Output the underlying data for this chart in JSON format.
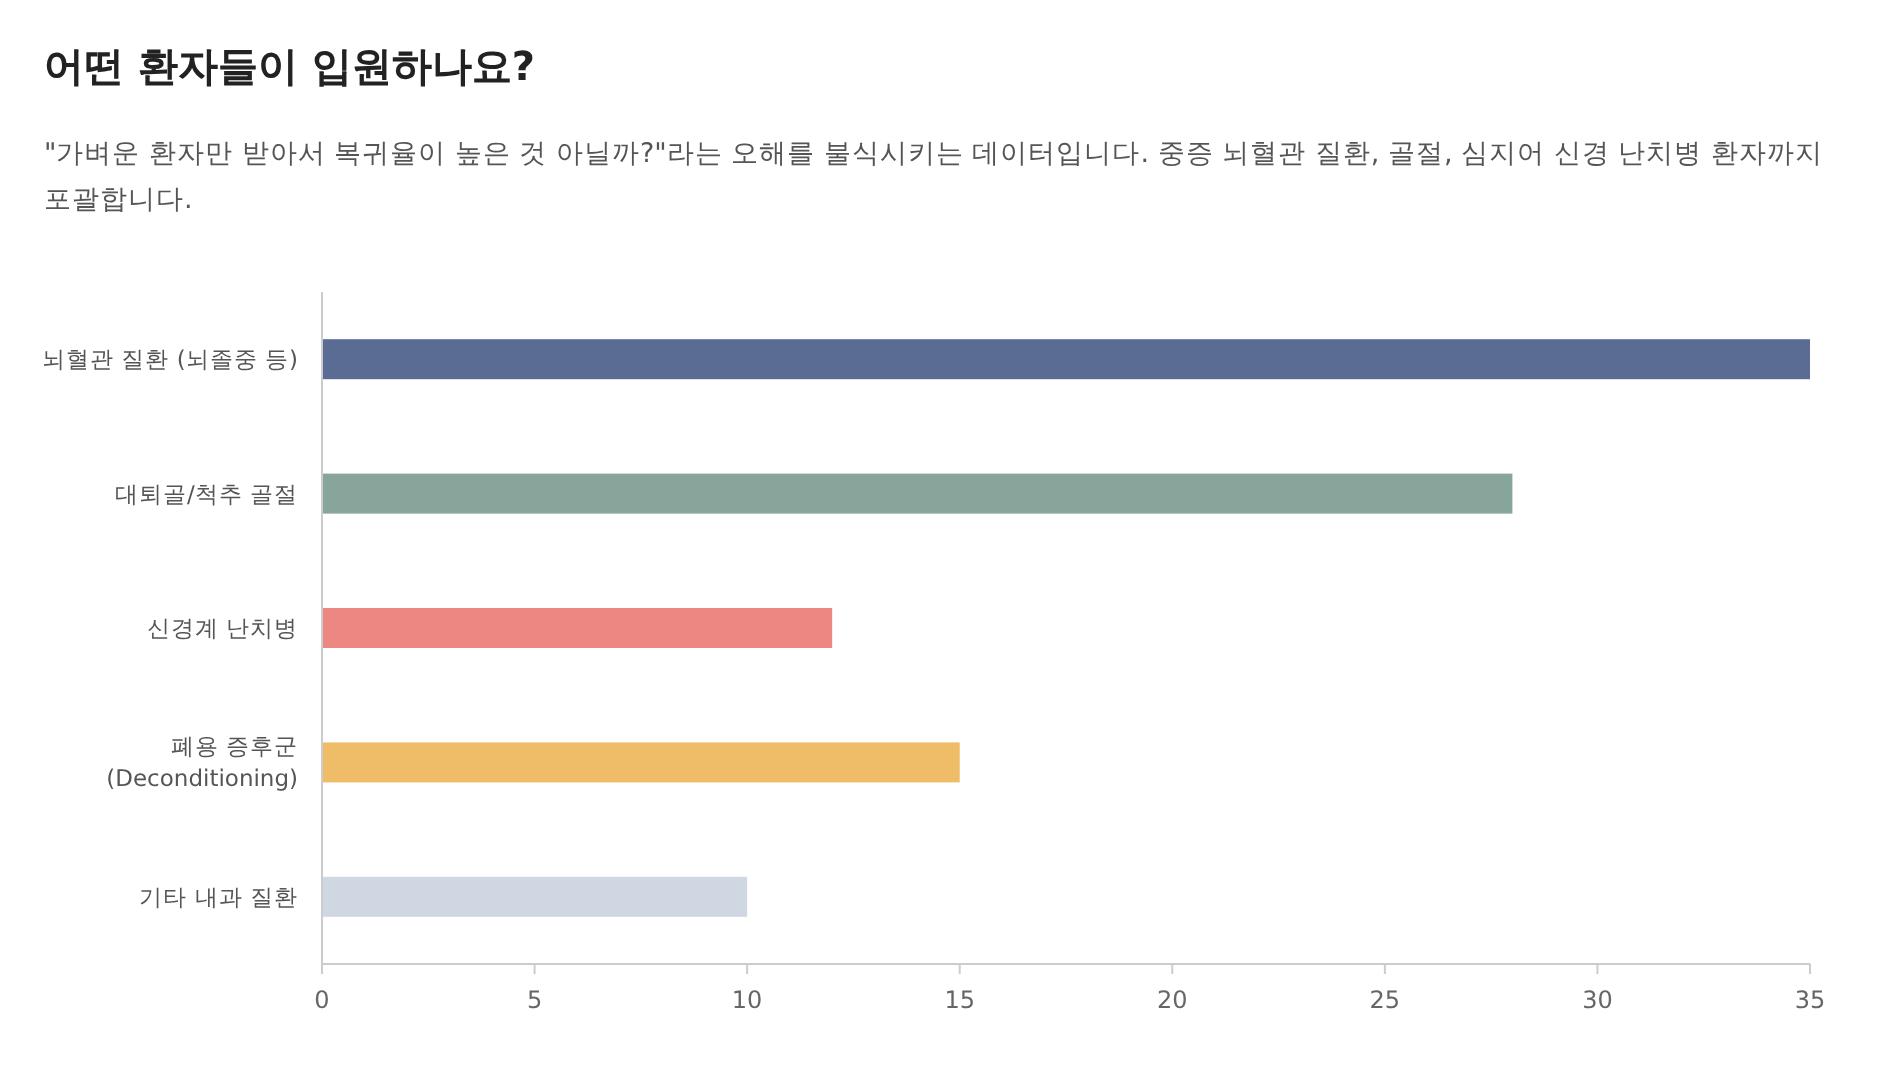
{
  "chart_data": {
    "type": "bar",
    "orientation": "horizontal",
    "title": "어떤 환자들이 입원하나요?",
    "subtitle": "\"가벼운 환자만 받아서 복귀율이 높은 것 아닐까?\"라는 오해를 불식시키는 데이터입니다. 중증 뇌혈관 질환, 골절, 심지어 신경 난치병 환자까지 포괄합니다.",
    "categories": [
      "뇌혈관 질환 (뇌졸중 등)",
      "대퇴골/척추 골절",
      "신경계 난치병",
      "폐용 증후군\n(Deconditioning)",
      "기타 내과 질환"
    ],
    "values": [
      35,
      28,
      12,
      15,
      10
    ],
    "colors": [
      "#5a6b94",
      "#88a59b",
      "#ec8781",
      "#efbd67",
      "#cfd7e3"
    ],
    "xlim": [
      0,
      35
    ],
    "xticks": [
      0,
      5,
      10,
      15,
      20,
      25,
      30,
      35
    ],
    "grid": false
  }
}
